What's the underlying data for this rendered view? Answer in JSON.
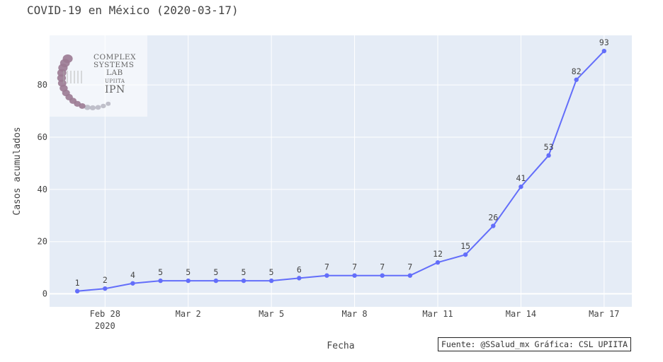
{
  "title": "COVID-19 en México (2020-03-17)",
  "source_note": "Fuente: @SSalud_mx Gráfica: CSL UPIITA",
  "logo": {
    "line1": "COMPLEX",
    "line2": "SYSTEMS",
    "line3": "LAB",
    "line4": "UPIITA",
    "line5": "IPN"
  },
  "chart_data": {
    "type": "line",
    "title": "COVID-19 en México (2020-03-17)",
    "xlabel": "Fecha",
    "ylabel": "Casos acumulados",
    "x": [
      "2020-02-27",
      "2020-02-28",
      "2020-02-29",
      "2020-03-01",
      "2020-03-02",
      "2020-03-03",
      "2020-03-04",
      "2020-03-05",
      "2020-03-06",
      "2020-03-07",
      "2020-03-08",
      "2020-03-09",
      "2020-03-10",
      "2020-03-11",
      "2020-03-12",
      "2020-03-13",
      "2020-03-14",
      "2020-03-15",
      "2020-03-16",
      "2020-03-17"
    ],
    "values": [
      1,
      2,
      4,
      5,
      5,
      5,
      5,
      5,
      6,
      7,
      7,
      7,
      7,
      12,
      15,
      26,
      41,
      53,
      82,
      93
    ],
    "x_ticks": [
      {
        "date": "2020-02-28",
        "label": "Feb 28",
        "sublabel": "2020"
      },
      {
        "date": "2020-03-02",
        "label": "Mar 2"
      },
      {
        "date": "2020-03-05",
        "label": "Mar 5"
      },
      {
        "date": "2020-03-08",
        "label": "Mar 8"
      },
      {
        "date": "2020-03-11",
        "label": "Mar 11"
      },
      {
        "date": "2020-03-14",
        "label": "Mar 14"
      },
      {
        "date": "2020-03-17",
        "label": "Mar 17"
      }
    ],
    "y_ticks": [
      0,
      20,
      40,
      60,
      80
    ],
    "ylim": [
      -5,
      99
    ],
    "xlim": [
      "2020-02-26",
      "2020-03-18"
    ],
    "grid": true,
    "line_color": "#636efa",
    "plot_bg": "#e5ecf6"
  }
}
